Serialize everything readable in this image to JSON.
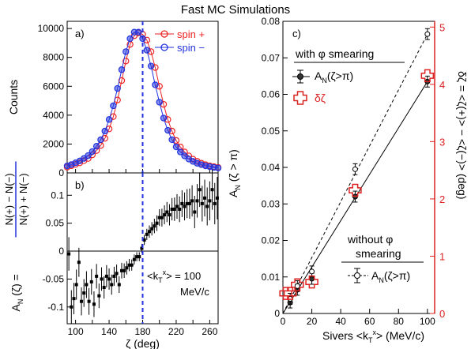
{
  "title": "Fast MC Simulations",
  "chart_data": [
    {
      "panel": "a)",
      "type": "scatter",
      "xlabel": "",
      "ylabel": "Counts",
      "xlim": [
        90,
        270
      ],
      "ylim": [
        0,
        10500
      ],
      "yticks": [
        0,
        2000,
        4000,
        6000,
        8000,
        10000
      ],
      "xticks": [
        100,
        120,
        140,
        160,
        180,
        200,
        220,
        240,
        260
      ],
      "vline": 180,
      "legend_position": "top-right",
      "series": [
        {
          "name": "spin +",
          "color": "#ee2222",
          "marker": "open-circle",
          "x": [
            90,
            95,
            100,
            105,
            110,
            115,
            120,
            125,
            130,
            135,
            140,
            145,
            150,
            155,
            160,
            165,
            170,
            175,
            180,
            185,
            190,
            195,
            200,
            205,
            210,
            215,
            220,
            225,
            230,
            235,
            240,
            245,
            250,
            255,
            260,
            265,
            270
          ],
          "y": [
            400,
            500,
            590,
            700,
            850,
            1000,
            1250,
            1550,
            1900,
            2400,
            3050,
            3900,
            5050,
            6400,
            7750,
            8900,
            9500,
            9700,
            9600,
            9200,
            8400,
            7300,
            6000,
            4750,
            3700,
            2900,
            2250,
            1800,
            1450,
            1180,
            950,
            800,
            670,
            570,
            490,
            430,
            380
          ]
        },
        {
          "name": "spin −",
          "color": "#2233dd",
          "marker": "open-circle",
          "x": [
            90,
            95,
            100,
            105,
            110,
            115,
            120,
            125,
            130,
            135,
            140,
            145,
            150,
            155,
            160,
            165,
            170,
            175,
            180,
            185,
            190,
            195,
            200,
            205,
            210,
            215,
            220,
            225,
            230,
            235,
            240,
            245,
            250,
            255,
            260,
            265,
            270
          ],
          "y": [
            490,
            580,
            700,
            830,
            1000,
            1200,
            1480,
            1850,
            2300,
            2900,
            3700,
            4650,
            5850,
            7150,
            8400,
            9300,
            9750,
            9750,
            9300,
            8500,
            7400,
            6100,
            4900,
            3800,
            2950,
            2300,
            1800,
            1450,
            1180,
            960,
            800,
            670,
            570,
            490,
            430,
            380,
            340
          ]
        }
      ]
    },
    {
      "panel": "b)",
      "type": "scatter",
      "xlabel": "ζ (deg)",
      "ylabel_parts": [
        "A",
        "N",
        " (ζ) = ",
        "N(+) − N(−)",
        "N(+) + N(−)"
      ],
      "xlim": [
        90,
        270
      ],
      "ylim": [
        -0.13,
        0.14
      ],
      "yticks": [
        -0.1,
        -0.05,
        0,
        0.05,
        0.1
      ],
      "ytick_labels": [
        "-0.1",
        "-0.05",
        "0",
        "0.05",
        "0.1"
      ],
      "xticks": [
        100,
        120,
        140,
        160,
        180,
        200,
        220,
        240,
        260
      ],
      "xtick_labels": [
        "100",
        "140",
        "180",
        "220",
        "260"
      ],
      "xtick_label_values": [
        100,
        140,
        180,
        220,
        260
      ],
      "vline": 180,
      "annotation_lines": [
        "<k",
        "T",
        "x",
        "> = 100",
        "MeV/c"
      ],
      "series": [
        {
          "name": "A_N",
          "color": "#000000",
          "marker": "filled-square",
          "x": [
            92,
            95,
            98,
            101,
            104,
            107,
            110,
            113,
            116,
            119,
            122,
            125,
            128,
            131,
            134,
            137,
            140,
            143,
            146,
            149,
            152,
            155,
            158,
            161,
            164,
            167,
            170,
            173,
            176,
            179,
            182,
            185,
            188,
            191,
            194,
            197,
            200,
            203,
            206,
            209,
            212,
            215,
            218,
            221,
            224,
            227,
            230,
            233,
            236,
            239,
            242,
            245,
            248,
            251,
            254,
            257,
            260,
            263,
            266,
            269
          ],
          "y": [
            -0.005,
            -0.1,
            -0.085,
            -0.06,
            -0.02,
            -0.09,
            -0.075,
            -0.06,
            -0.09,
            -0.055,
            -0.095,
            -0.045,
            -0.08,
            -0.05,
            -0.065,
            -0.045,
            -0.05,
            -0.06,
            -0.045,
            -0.04,
            -0.06,
            -0.035,
            -0.035,
            -0.03,
            -0.025,
            -0.025,
            -0.015,
            -0.01,
            -0.01,
            0.005,
            0.02,
            0.03,
            0.035,
            0.04,
            0.045,
            0.05,
            0.06,
            0.06,
            0.065,
            0.07,
            0.065,
            0.075,
            0.075,
            0.08,
            0.075,
            0.085,
            0.08,
            0.085,
            0.085,
            0.09,
            0.07,
            0.09,
            0.11,
            0.085,
            0.095,
            0.08,
            0.09,
            0.11,
            0.085,
            0.095
          ],
          "err": [
            0.03,
            0.03,
            0.028,
            0.027,
            0.026,
            0.025,
            0.025,
            0.024,
            0.024,
            0.023,
            0.023,
            0.022,
            0.022,
            0.021,
            0.02,
            0.02,
            0.019,
            0.018,
            0.017,
            0.016,
            0.015,
            0.014,
            0.013,
            0.012,
            0.011,
            0.01,
            0.009,
            0.008,
            0.008,
            0.008,
            0.009,
            0.01,
            0.011,
            0.012,
            0.013,
            0.014,
            0.015,
            0.016,
            0.017,
            0.018,
            0.019,
            0.02,
            0.021,
            0.022,
            0.023,
            0.024,
            0.025,
            0.026,
            0.027,
            0.028,
            0.029,
            0.03,
            0.031,
            0.032,
            0.033,
            0.034,
            0.035,
            0.036,
            0.037,
            0.038
          ]
        }
      ]
    },
    {
      "panel": "c)",
      "type": "scatter",
      "xlabel_parts": [
        "Sivers <k",
        "T",
        "x",
        ">  (MeV/c)"
      ],
      "ylabel_parts": [
        "A",
        "N",
        " (ζ > π)"
      ],
      "y2label_parts": [
        "δζ = <ζ(+)> − <ζ(−)>",
        "(deg)"
      ],
      "xlim": [
        0,
        105
      ],
      "ylim": [
        0,
        0.08
      ],
      "y2lim": [
        0,
        5.1
      ],
      "xticks": [
        0,
        20,
        40,
        60,
        80,
        100
      ],
      "yticks": [
        0,
        0.01,
        0.02,
        0.03,
        0.04,
        0.05,
        0.06,
        0.07,
        0.08
      ],
      "ytick_labels": [
        "0",
        "0.01",
        "0.02",
        "0.03",
        "0.04",
        "0.05",
        "0.06",
        "0.07",
        "0.08"
      ],
      "y2ticks": [
        0,
        1,
        2,
        3,
        4,
        5
      ],
      "legend_top": {
        "header_parts": [
          "with ",
          "φ",
          " smearing"
        ],
        "entries": [
          {
            "label_parts": [
              "A",
              "N",
              "(ζ>π)"
            ],
            "symbol": "filled-circle-errorbar",
            "color": "#000000"
          },
          {
            "label": "δζ",
            "symbol": "open-cross",
            "color": "#dd2222"
          }
        ]
      },
      "legend_bottom": {
        "header_lines": [
          "without φ",
          "smearing"
        ],
        "entries": [
          {
            "label_parts": [
              "A",
              "N",
              "(ζ>π)"
            ],
            "symbol": "open-circle-errorbar-dashed",
            "color": "#000000"
          }
        ]
      },
      "series": [
        {
          "name": "A_N (with φ smearing)",
          "color": "#000000",
          "marker": "filled-circle",
          "axis": "left",
          "x": [
            5,
            10,
            20,
            50,
            100
          ],
          "y": [
            0.003,
            0.0065,
            0.0095,
            0.032,
            0.0635
          ],
          "err": [
            0.0015,
            0.0015,
            0.0015,
            0.0015,
            0.0015
          ],
          "fit": {
            "style": "solid",
            "x": [
              0,
              100
            ],
            "y": [
              0,
              0.0635
            ]
          }
        },
        {
          "name": "A_N (without φ smearing)",
          "color": "#000000",
          "marker": "open-circle",
          "axis": "left",
          "x": [
            5,
            10,
            20,
            50,
            100
          ],
          "y": [
            0.004,
            0.0075,
            0.0115,
            0.0395,
            0.0765
          ],
          "err": [
            0.0015,
            0.0015,
            0.0015,
            0.0015,
            0.0015
          ],
          "fit": {
            "style": "dashed",
            "x": [
              0,
              100
            ],
            "y": [
              0,
              0.0765
            ]
          }
        },
        {
          "name": "δζ",
          "color": "#dd2222",
          "marker": "open-cross",
          "axis": "right",
          "x": [
            2,
            5,
            10,
            20,
            50,
            100
          ],
          "y": [
            0.35,
            0.35,
            0.5,
            0.55,
            2.15,
            4.15
          ]
        }
      ]
    }
  ]
}
